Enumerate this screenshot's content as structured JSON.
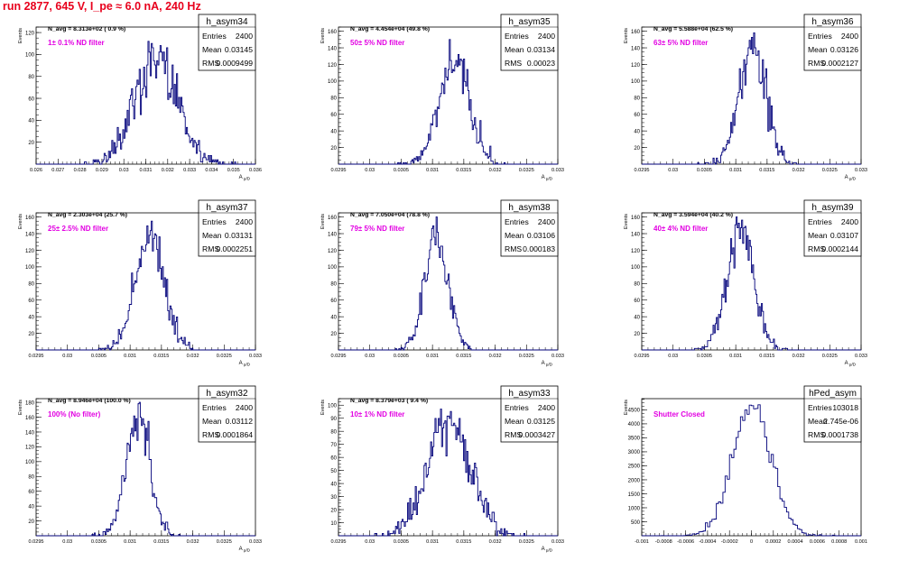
{
  "page_title": "run 2877,   645 V, I_pe ≈ 6.0 nA, 240 Hz",
  "colors": {
    "title": "#e8001c",
    "histogram": "#00007a",
    "annotation": "#e200e2",
    "axis": "#000000"
  },
  "chart_data": [
    {
      "type": "histogram",
      "name": "h_asym34",
      "nline": "N_avg = 8.313e+02 ( 0.9 %)",
      "label": "1± 0.1% ND filter",
      "stats": {
        "entries": "2400",
        "mean": "0.03145",
        "rms": "0.0009499"
      },
      "xlabel": "A_μ/D",
      "ylabel": "Events",
      "xlim": [
        0.026,
        0.036
      ],
      "ylim": [
        0,
        125
      ],
      "xticks": [
        "0.026",
        "0.027",
        "0.028",
        "0.029",
        "0.03",
        "0.031",
        "0.032",
        "0.033",
        "0.034",
        "0.035",
        "0.036"
      ],
      "yticks": [
        "20",
        "40",
        "60",
        "80",
        "100",
        "120"
      ],
      "dist": {
        "mean": 0.03145,
        "sigma": 0.00095,
        "entries": 2400,
        "nbins": 200,
        "peak": 112,
        "seed": 34
      }
    },
    {
      "type": "histogram",
      "name": "h_asym35",
      "nline": "N_avg = 4.454e+04 (49.8 %)",
      "label": "50± 5% ND filter",
      "stats": {
        "entries": "2400",
        "mean": "0.03134",
        "rms": "0.00023"
      },
      "xlabel": "A_μ/D",
      "ylabel": "Events",
      "xlim": [
        0.0295,
        0.033
      ],
      "ylim": [
        0,
        165
      ],
      "xticks": [
        "0.0295",
        "0.03",
        "0.0305",
        "0.031",
        "0.0315",
        "0.032",
        "0.0325",
        "0.033"
      ],
      "yticks": [
        "20",
        "40",
        "60",
        "80",
        "100",
        "120",
        "140",
        "160"
      ],
      "dist": {
        "mean": 0.03134,
        "sigma": 0.00023,
        "entries": 2400,
        "nbins": 200,
        "peak": 150,
        "seed": 35
      }
    },
    {
      "type": "histogram",
      "name": "h_asym36",
      "nline": "N_avg = 5.588e+04 (62.5 %)",
      "label": "63± 5% ND filter",
      "stats": {
        "entries": "2400",
        "mean": "0.03126",
        "rms": "0.0002127"
      },
      "xlabel": "A_μ/D",
      "ylabel": "Events",
      "xlim": [
        0.0295,
        0.033
      ],
      "ylim": [
        0,
        165
      ],
      "xticks": [
        "0.0295",
        "0.03",
        "0.0305",
        "0.031",
        "0.0315",
        "0.032",
        "0.0325",
        "0.033"
      ],
      "yticks": [
        "20",
        "40",
        "60",
        "80",
        "100",
        "120",
        "140",
        "160"
      ],
      "dist": {
        "mean": 0.03126,
        "sigma": 0.000213,
        "entries": 2400,
        "nbins": 200,
        "peak": 158,
        "seed": 36
      }
    },
    {
      "type": "histogram",
      "name": "h_asym37",
      "nline": "N_avg = 2.303e+04 (25.7 %)",
      "label": "25± 2.5% ND filter",
      "stats": {
        "entries": "2400",
        "mean": "0.03131",
        "rms": "0.0002251"
      },
      "xlabel": "A_μ/D",
      "ylabel": "Events",
      "xlim": [
        0.0295,
        0.033
      ],
      "ylim": [
        0,
        165
      ],
      "xticks": [
        "0.0295",
        "0.03",
        "0.0305",
        "0.031",
        "0.0315",
        "0.032",
        "0.0325",
        "0.033"
      ],
      "yticks": [
        "20",
        "40",
        "60",
        "80",
        "100",
        "120",
        "140",
        "160"
      ],
      "dist": {
        "mean": 0.03131,
        "sigma": 0.000225,
        "entries": 2400,
        "nbins": 200,
        "peak": 155,
        "seed": 37
      }
    },
    {
      "type": "histogram",
      "name": "h_asym38",
      "nline": "N_avg = 7.050e+04 (78.8 %)",
      "label": "79± 5% ND filter",
      "stats": {
        "entries": "2400",
        "mean": "0.03106",
        "rms": "0.000183"
      },
      "xlabel": "A_μ/D",
      "ylabel": "Events",
      "xlim": [
        0.0295,
        0.033
      ],
      "ylim": [
        0,
        165
      ],
      "xticks": [
        "0.0295",
        "0.03",
        "0.0305",
        "0.031",
        "0.0315",
        "0.032",
        "0.0325",
        "0.033"
      ],
      "yticks": [
        "20",
        "40",
        "60",
        "80",
        "100",
        "120",
        "140",
        "160"
      ],
      "dist": {
        "mean": 0.03106,
        "sigma": 0.000183,
        "entries": 2400,
        "nbins": 200,
        "peak": 160,
        "seed": 38
      }
    },
    {
      "type": "histogram",
      "name": "h_asym39",
      "nline": "N_avg = 3.594e+04 (40.2 %)",
      "label": "40± 4% ND filter",
      "stats": {
        "entries": "2400",
        "mean": "0.03107",
        "rms": "0.0002144"
      },
      "xlabel": "A_μ/D",
      "ylabel": "Events",
      "xlim": [
        0.0295,
        0.033
      ],
      "ylim": [
        0,
        165
      ],
      "xticks": [
        "0.0295",
        "0.03",
        "0.0305",
        "0.031",
        "0.0315",
        "0.032",
        "0.0325",
        "0.033"
      ],
      "yticks": [
        "20",
        "40",
        "60",
        "80",
        "100",
        "120",
        "140",
        "160"
      ],
      "dist": {
        "mean": 0.03107,
        "sigma": 0.000214,
        "entries": 2400,
        "nbins": 200,
        "peak": 160,
        "seed": 39
      }
    },
    {
      "type": "histogram",
      "name": "h_asym32",
      "nline": "N_avg = 8.946e+04 (100.0 %)",
      "label": "100% (No filter)",
      "stats": {
        "entries": "2400",
        "mean": "0.03112",
        "rms": "0.0001864"
      },
      "xlabel": "A_μ/D",
      "ylabel": "Events",
      "xlim": [
        0.0295,
        0.033
      ],
      "ylim": [
        0,
        185
      ],
      "xticks": [
        "0.0295",
        "0.03",
        "0.0305",
        "0.031",
        "0.0315",
        "0.032",
        "0.0325",
        "0.033"
      ],
      "yticks": [
        "20",
        "40",
        "60",
        "80",
        "100",
        "120",
        "140",
        "160",
        "180"
      ],
      "dist": {
        "mean": 0.03112,
        "sigma": 0.000186,
        "entries": 2400,
        "nbins": 200,
        "peak": 180,
        "seed": 32
      }
    },
    {
      "type": "histogram",
      "name": "h_asym33",
      "nline": "N_avg = 8.379e+03 ( 9.4 %)",
      "label": "10± 1% ND filter",
      "stats": {
        "entries": "2400",
        "mean": "0.03125",
        "rms": "0.0003427"
      },
      "xlabel": "A_μ/D",
      "ylabel": "Events",
      "xlim": [
        0.0295,
        0.033
      ],
      "ylim": [
        0,
        105
      ],
      "xticks": [
        "0.0295",
        "0.03",
        "0.0305",
        "0.031",
        "0.0315",
        "0.032",
        "0.0325",
        "0.033"
      ],
      "yticks": [
        "10",
        "20",
        "30",
        "40",
        "50",
        "60",
        "70",
        "80",
        "90",
        "100"
      ],
      "dist": {
        "mean": 0.03125,
        "sigma": 0.000343,
        "entries": 2400,
        "nbins": 200,
        "peak": 97,
        "seed": 33
      }
    },
    {
      "type": "histogram",
      "name": "hPed_asym",
      "nline": "",
      "label": "Shutter Closed",
      "stats": {
        "entries": "103018",
        "mean": "2.745e-06",
        "rms": "0.0001738"
      },
      "xlabel": "",
      "ylabel": "Events",
      "xlim": [
        -0.001,
        0.001
      ],
      "ylim": [
        0,
        4900
      ],
      "xticks": [
        "-0.001",
        "-0.0008",
        "-0.0006",
        "-0.0004",
        "-0.0002",
        "0",
        "0.0002",
        "0.0004",
        "0.0006",
        "0.0008",
        "0.001"
      ],
      "yticks": [
        "500",
        "1000",
        "1500",
        "2000",
        "2500",
        "3000",
        "3500",
        "4000",
        "4500"
      ],
      "dist": {
        "mean": 2.7e-06,
        "sigma": 0.000174,
        "entries": 103018,
        "nbins": 100,
        "peak": 4680,
        "seed": 40
      }
    }
  ]
}
